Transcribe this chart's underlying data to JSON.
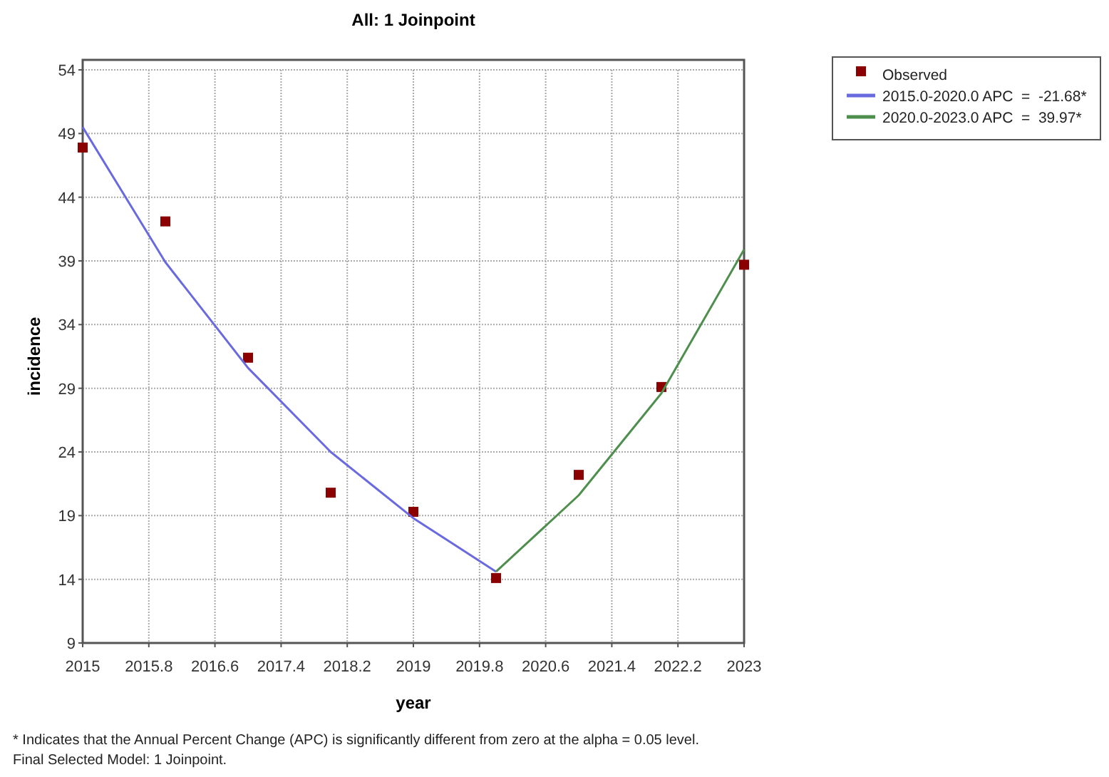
{
  "chart_data": {
    "type": "scatter",
    "title": "All: 1 Joinpoint",
    "xlabel": "year",
    "ylabel": "incidence",
    "annotations": [
      "* Indicates that the Annual Percent Change (APC) is significantly different from zero at the alpha = 0.05 level.",
      "Final Selected Model: 1 Joinpoint."
    ],
    "series": [
      {
        "name": "Observed",
        "marker": "square",
        "color": "#8b0000",
        "x": [
          2015,
          2016,
          2017,
          2018,
          2019,
          2020,
          2021,
          2022,
          2023
        ],
        "values": [
          47.9,
          42.1,
          31.4,
          20.8,
          19.3,
          14.1,
          22.2,
          29.1,
          38.7
        ]
      },
      {
        "name": "2015.0-2020.0 APC  =  -21.68*",
        "type": "line",
        "color": "#6a6ae0",
        "x": [
          2015,
          2016,
          2017,
          2018,
          2019,
          2020
        ],
        "values": [
          49.5,
          38.9,
          30.6,
          24.0,
          18.8,
          14.6
        ]
      },
      {
        "name": "2020.0-2023.0 APC  =  39.97*",
        "type": "line",
        "color": "#4e8f4e",
        "x": [
          2020,
          2021,
          2022,
          2023
        ],
        "values": [
          14.6,
          20.6,
          28.6,
          39.9
        ]
      }
    ],
    "xlim": [
      2015,
      2023
    ],
    "xticks": [
      2015,
      2015.8,
      2016.6,
      2017.4,
      2018.2,
      2019,
      2019.8,
      2020.6,
      2021.4,
      2022.2,
      2023
    ],
    "ylim": [
      9,
      54
    ],
    "yticks": [
      9,
      14,
      19,
      24,
      29,
      34,
      39,
      44,
      49,
      54
    ],
    "grid": true,
    "legend": "top right",
    "line_style": "solid"
  }
}
